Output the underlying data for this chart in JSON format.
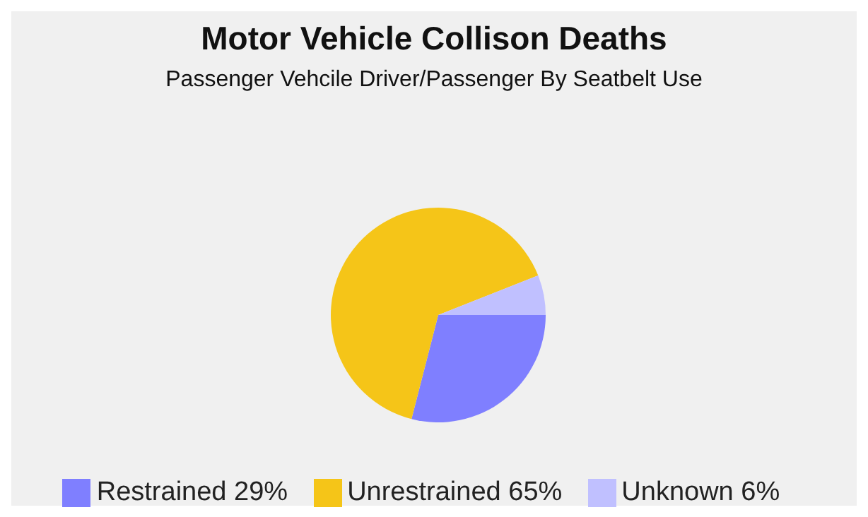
{
  "chart_data": {
    "type": "pie",
    "title": "Motor Vehicle Collison Deaths",
    "subtitle": "Passenger Vehcile Driver/Passenger By Seatbelt Use",
    "categories": [
      "Restrained",
      "Unrestrained",
      "Unknown"
    ],
    "values": [
      29,
      65,
      6
    ],
    "colors": [
      "#7f7fff",
      "#f5c518",
      "#c0c0ff"
    ],
    "value_labels": [
      "29%",
      "65%",
      "6%"
    ],
    "legend": "bottom"
  }
}
